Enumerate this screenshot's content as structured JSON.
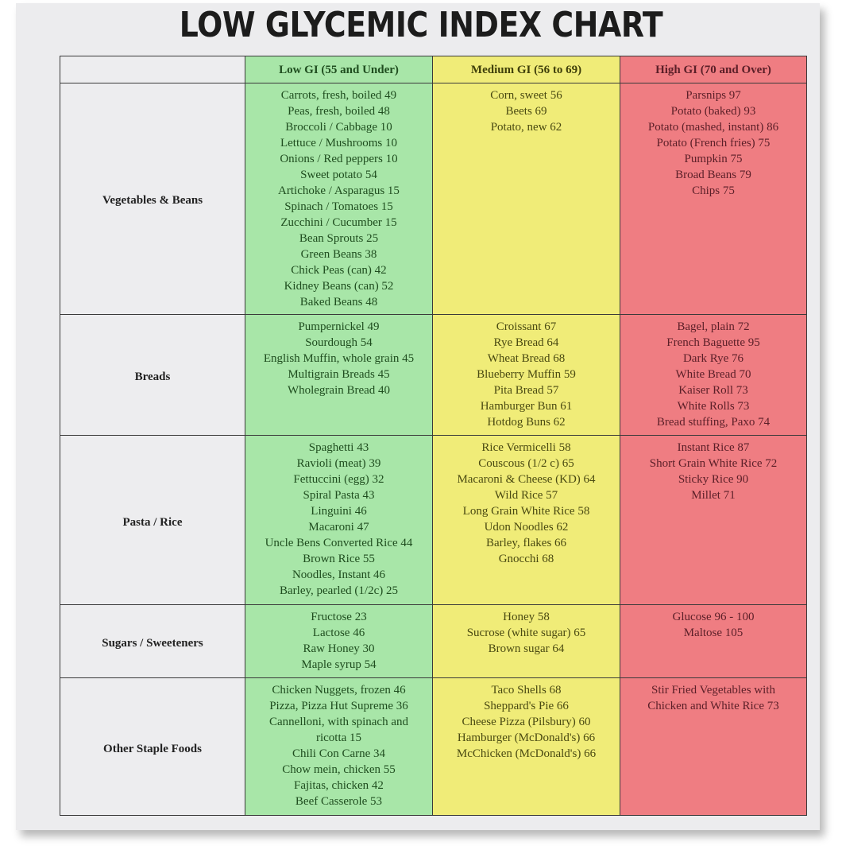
{
  "chart_data": {
    "type": "table",
    "title": "LOW GLYCEMIC INDEX CHART",
    "columns": [
      "",
      "Low GI (55 and Under)",
      "Medium GI (56 to 69)",
      "High GI (70 and Over)"
    ],
    "colors": {
      "low": "#a8e6a8",
      "medium": "#f0ec78",
      "high": "#ef7d82"
    },
    "rows": [
      {
        "category": "Vegetables & Beans",
        "low": [
          "Carrots, fresh, boiled  49",
          "Peas, fresh, boiled  48",
          "Broccoli / Cabbage  10",
          "Lettuce / Mushrooms  10",
          "Onions / Red peppers  10",
          "Sweet potato  54",
          "Artichoke / Asparagus  15",
          "Spinach / Tomatoes  15",
          "Zucchini / Cucumber  15",
          "Bean Sprouts  25",
          "Green Beans  38",
          "Chick Peas (can)  42",
          "Kidney Beans (can)  52",
          "Baked Beans  48"
        ],
        "medium": [
          "Corn, sweet  56",
          "Beets  69",
          "Potato, new  62"
        ],
        "high": [
          "Parsnips  97",
          "Potato (baked)  93",
          "Potato (mashed, instant)  86",
          "Potato (French fries)  75",
          "Pumpkin  75",
          "Broad Beans  79",
          "Chips  75"
        ]
      },
      {
        "category": "Breads",
        "low": [
          "Pumpernickel  49",
          "Sourdough  54",
          "English Muffin, whole grain 45",
          "Multigrain Breads  45",
          "Wholegrain Bread  40"
        ],
        "medium": [
          "Croissant  67",
          "Rye Bread  64",
          "Wheat Bread  68",
          "Blueberry Muffin  59",
          "Pita Bread  57",
          "Hamburger Bun  61",
          "Hotdog Buns  62"
        ],
        "high": [
          "Bagel, plain  72",
          "French Baguette  95",
          "Dark Rye  76",
          "White Bread  70",
          "Kaiser Roll  73",
          "White Rolls  73",
          "Bread stuffing, Paxo  74"
        ]
      },
      {
        "category": "Pasta / Rice",
        "low": [
          "Spaghetti  43",
          "Ravioli (meat)  39",
          "Fettuccini (egg)  32",
          "Spiral Pasta  43",
          "Linguini  46",
          "Macaroni  47",
          "Uncle Bens Converted Rice 44",
          "Brown Rice  55",
          "Noodles, Instant  46",
          "Barley, pearled (1/2c)  25"
        ],
        "medium": [
          "Rice Vermicelli  58",
          "Couscous (1/2 c)  65",
          "Macaroni & Cheese (KD)  64",
          "Wild Rice  57",
          "Long Grain White Rice  58",
          "Udon Noodles  62",
          "Barley, flakes  66",
          "Gnocchi  68"
        ],
        "high": [
          "Instant Rice  87",
          "Short Grain White Rice  72",
          "Sticky Rice  90",
          "Millet  71"
        ]
      },
      {
        "category": "Sugars / Sweeteners",
        "low": [
          "Fructose  23",
          "Lactose  46",
          "Raw Honey  30",
          "Maple syrup  54"
        ],
        "medium": [
          "Honey  58",
          "Sucrose (white sugar)  65",
          "Brown sugar  64"
        ],
        "high": [
          "Glucose  96 - 100",
          "Maltose  105"
        ]
      },
      {
        "category": "Other Staple Foods",
        "low": [
          "Chicken Nuggets, frozen 46",
          "Pizza, Pizza Hut Supreme 36",
          "Cannelloni, with spinach and",
          "ricotta  15",
          "Chili Con Carne  34",
          "Chow mein, chicken  55",
          "Fajitas, chicken  42",
          "Beef Casserole  53"
        ],
        "medium": [
          "Taco Shells  68",
          "Sheppard's Pie  66",
          "Cheese Pizza (Pilsbury)  60",
          "Hamburger (McDonald's)  66",
          "McChicken (McDonald's)  66"
        ],
        "high": [
          "Stir Fried Vegetables with",
          "Chicken and White Rice 73"
        ]
      }
    ]
  }
}
